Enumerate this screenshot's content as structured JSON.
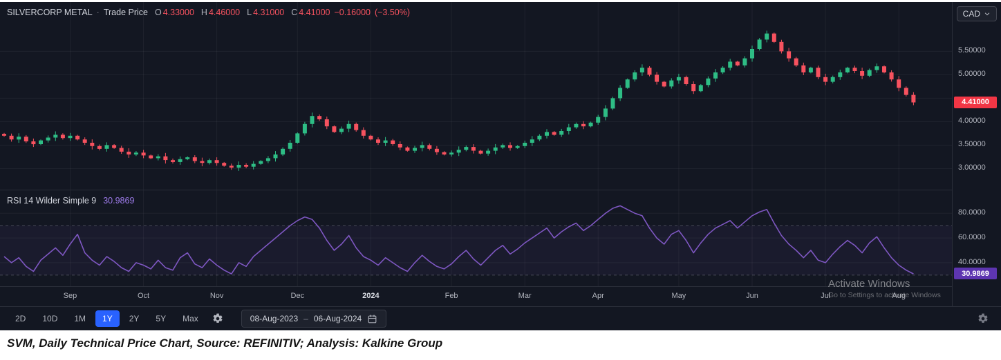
{
  "header": {
    "symbol": "SILVERCORP METAL",
    "separator": "·",
    "series_type": "Trade Price",
    "ohlc": {
      "o_label": "O",
      "o_value": "4.33000",
      "h_label": "H",
      "h_value": "4.46000",
      "l_label": "L",
      "l_value": "4.31000",
      "c_label": "C",
      "c_value": "4.41000",
      "change": "−0.16000",
      "change_pct": "(−3.50%)"
    },
    "currency": "CAD"
  },
  "price_pane": {
    "axis_labels": [
      {
        "text": "5.50000",
        "value": 5.5
      },
      {
        "text": "5.00000",
        "value": 5.0
      },
      {
        "text": "4.00000",
        "value": 4.0
      },
      {
        "text": "3.50000",
        "value": 3.5
      },
      {
        "text": "3.00000",
        "value": 3.0
      }
    ],
    "last_price_badge": {
      "text": "4.41000",
      "value": 4.41
    }
  },
  "rsi_pane": {
    "legend": "RSI 14 Wilder Simple 9",
    "value": "30.9869",
    "axis_labels": [
      {
        "text": "80.0000",
        "value": 80
      },
      {
        "text": "60.0000",
        "value": 60
      },
      {
        "text": "40.0000",
        "value": 40
      }
    ],
    "badge": {
      "text": "30.9869",
      "value": 30.9869
    }
  },
  "toolbar": {
    "ranges": [
      "2D",
      "10D",
      "1M",
      "1Y",
      "2Y",
      "5Y",
      "Max"
    ],
    "active_range": "1Y",
    "date_range": {
      "start": "08-Aug-2023",
      "separator": "–",
      "end": "06-Aug-2024"
    }
  },
  "watermark": {
    "line1": "Activate Windows",
    "line2": "Go to Settings to activate Windows"
  },
  "caption": "SVM, Daily Technical Price Chart, Source: REFINITIV; Analysis: Kalkine Group",
  "colors": {
    "background": "#131722",
    "up_candle": "#2ebd85",
    "down_candle": "#f7525f",
    "price_badge": "#f23645",
    "rsi_line": "#7e57c2",
    "rsi_badge": "#5d35b0",
    "accent_blue": "#2962ff",
    "axis_text": "#b2b5be"
  },
  "chart_data": {
    "type": "candlestick",
    "title": "SILVERCORP METAL · Trade Price",
    "date_range": [
      "08-Aug-2023",
      "06-Aug-2024"
    ],
    "price_axis": {
      "min": 2.55,
      "max": 6.55,
      "ticks": [
        3.0,
        3.5,
        4.0,
        4.5,
        5.0,
        5.5
      ]
    },
    "first_open": 3.74,
    "closes": [
      3.7,
      3.62,
      3.68,
      3.58,
      3.52,
      3.6,
      3.66,
      3.72,
      3.65,
      3.7,
      3.62,
      3.55,
      3.48,
      3.42,
      3.5,
      3.44,
      3.36,
      3.3,
      3.34,
      3.28,
      3.22,
      3.26,
      3.18,
      3.14,
      3.2,
      3.24,
      3.16,
      3.12,
      3.18,
      3.12,
      3.06,
      3.02,
      3.08,
      3.04,
      3.1,
      3.16,
      3.22,
      3.3,
      3.42,
      3.55,
      3.75,
      3.95,
      4.12,
      4.05,
      3.9,
      3.78,
      3.85,
      3.95,
      3.82,
      3.7,
      3.62,
      3.55,
      3.6,
      3.52,
      3.45,
      3.38,
      3.44,
      3.5,
      3.42,
      3.35,
      3.3,
      3.34,
      3.4,
      3.46,
      3.38,
      3.32,
      3.38,
      3.45,
      3.5,
      3.44,
      3.48,
      3.55,
      3.62,
      3.7,
      3.78,
      3.72,
      3.8,
      3.88,
      3.95,
      3.9,
      3.98,
      4.1,
      4.28,
      4.5,
      4.72,
      4.9,
      5.05,
      5.15,
      5.0,
      4.85,
      4.75,
      4.88,
      4.95,
      4.8,
      4.65,
      4.78,
      4.92,
      5.05,
      5.15,
      5.28,
      5.2,
      5.35,
      5.55,
      5.75,
      5.88,
      5.7,
      5.5,
      5.35,
      5.2,
      5.05,
      5.15,
      4.95,
      4.85,
      4.95,
      5.05,
      5.15,
      5.08,
      4.98,
      5.1,
      5.18,
      5.05,
      4.9,
      4.72,
      4.57,
      4.41
    ],
    "month_ticks": [
      {
        "label": "Sep",
        "i": 9
      },
      {
        "label": "Oct",
        "i": 19
      },
      {
        "label": "Nov",
        "i": 29
      },
      {
        "label": "Dec",
        "i": 40
      },
      {
        "label": "2024",
        "i": 50,
        "year": true
      },
      {
        "label": "Feb",
        "i": 61
      },
      {
        "label": "Mar",
        "i": 71
      },
      {
        "label": "Apr",
        "i": 81
      },
      {
        "label": "May",
        "i": 92
      },
      {
        "label": "Jun",
        "i": 102
      },
      {
        "label": "Jul",
        "i": 112
      },
      {
        "label": "Aug",
        "i": 122
      }
    ],
    "rsi": {
      "type": "line",
      "label": "RSI 14 Wilder Simple 9",
      "last_value": 30.9869,
      "axis": {
        "min": 21,
        "max": 98.5,
        "ticks": [
          40,
          60,
          80
        ],
        "bands": [
          30,
          70
        ]
      },
      "values": [
        45,
        40,
        44,
        37,
        33,
        42,
        47,
        52,
        46,
        55,
        63,
        48,
        42,
        38,
        45,
        41,
        36,
        33,
        40,
        38,
        35,
        42,
        36,
        34,
        44,
        48,
        39,
        36,
        43,
        38,
        34,
        31,
        40,
        37,
        45,
        50,
        55,
        60,
        65,
        70,
        74,
        77,
        75,
        68,
        58,
        50,
        55,
        62,
        52,
        45,
        42,
        38,
        44,
        40,
        36,
        33,
        40,
        46,
        41,
        37,
        35,
        39,
        45,
        50,
        43,
        38,
        44,
        50,
        54,
        47,
        51,
        56,
        60,
        64,
        68,
        60,
        65,
        69,
        72,
        66,
        70,
        75,
        80,
        84,
        86,
        83,
        80,
        78,
        68,
        60,
        55,
        63,
        66,
        58,
        48,
        56,
        63,
        68,
        71,
        74,
        68,
        73,
        78,
        81,
        83,
        72,
        62,
        55,
        50,
        44,
        50,
        42,
        40,
        47,
        53,
        58,
        54,
        48,
        56,
        61,
        52,
        44,
        38,
        34,
        30.9869
      ]
    }
  }
}
